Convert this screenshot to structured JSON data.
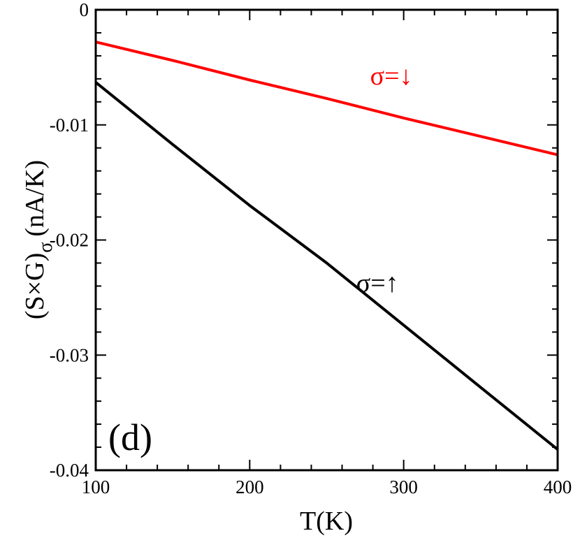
{
  "chart_data": {
    "type": "line",
    "title": "",
    "panel_label": "(d)",
    "xlabel": "T(K)",
    "ylabel": {
      "main": "(S×G)",
      "subscript": "σ",
      "units": "(nA/K)"
    },
    "xlim": [
      100,
      400
    ],
    "ylim": [
      -0.04,
      0
    ],
    "x_ticks": [
      100,
      200,
      300,
      400
    ],
    "x_tick_labels": [
      "100",
      "200",
      "300",
      "400"
    ],
    "y_ticks": [
      0,
      -0.01,
      -0.02,
      -0.03,
      -0.04
    ],
    "y_tick_labels": [
      "0",
      "-0.01",
      "-0.02",
      "-0.03",
      "-0.04"
    ],
    "grid": false,
    "series": [
      {
        "name": "σ=↓",
        "color": "#ff0000",
        "x": [
          100,
          150,
          200,
          250,
          300,
          350,
          400
        ],
        "y": [
          -0.0028,
          -0.0044,
          -0.0061,
          -0.0077,
          -0.0094,
          -0.011,
          -0.0126
        ]
      },
      {
        "name": "σ=↑",
        "color": "#000000",
        "x": [
          100,
          150,
          200,
          250,
          300,
          350,
          400
        ],
        "y": [
          -0.0063,
          -0.0117,
          -0.017,
          -0.022,
          -0.0274,
          -0.0328,
          -0.0382
        ]
      }
    ],
    "series_labels": [
      {
        "text": "σ=↓",
        "color": "#ff0000",
        "at": [
          292,
          -0.0065
        ]
      },
      {
        "text": "σ=↑",
        "color": "#000000",
        "at": [
          283,
          -0.0245
        ]
      }
    ]
  }
}
